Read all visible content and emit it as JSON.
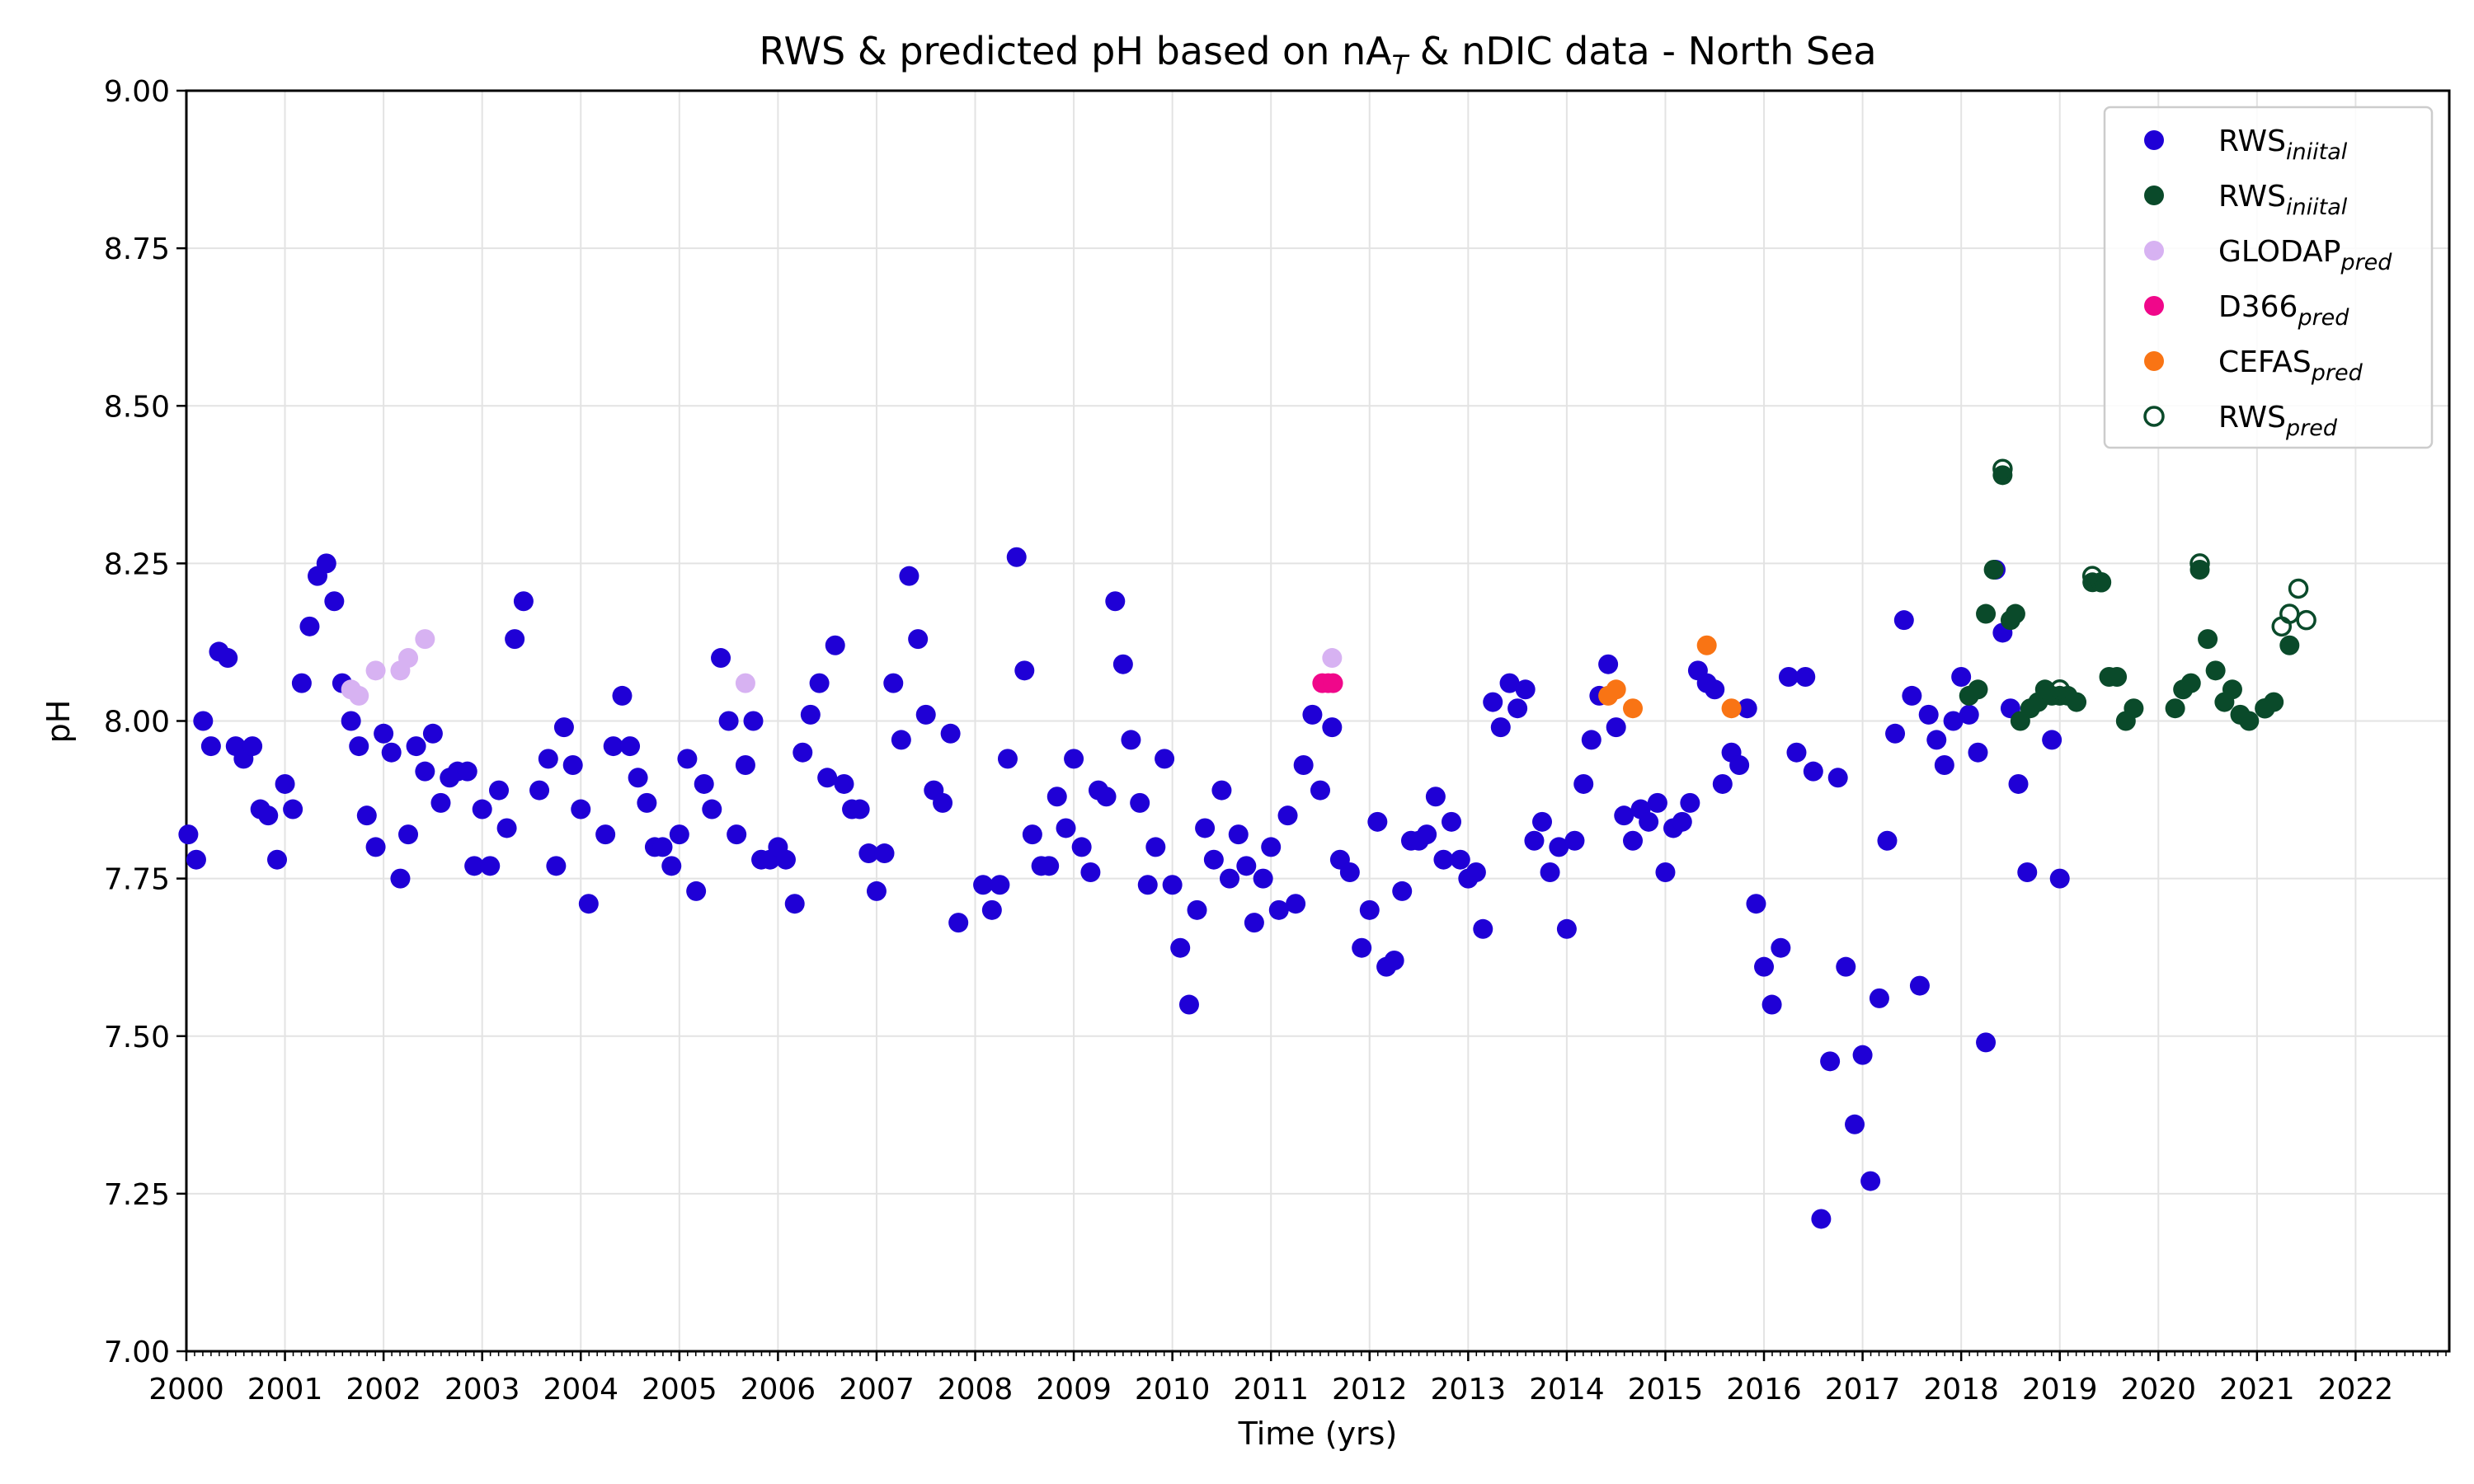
{
  "chart_data": {
    "type": "scatter",
    "title": "RWS & predicted pH based on nA",
    "title_sub": "T",
    "title_rest": " & nDIC data - North Sea",
    "xlabel": "Time (yrs)",
    "ylabel": "pH",
    "xlim": [
      2000.0,
      2022.95
    ],
    "ylim": [
      7.0,
      9.0
    ],
    "x_ticks": [
      "2000",
      "2001",
      "2002",
      "2003",
      "2004",
      "2005",
      "2006",
      "2007",
      "2008",
      "2009",
      "2010",
      "2011",
      "2012",
      "2013",
      "2014",
      "2015",
      "2016",
      "2017",
      "2018",
      "2019",
      "2020",
      "2021",
      "2022"
    ],
    "y_ticks": [
      "7.00",
      "7.25",
      "7.50",
      "7.75",
      "8.00",
      "8.25",
      "8.50",
      "8.75",
      "9.00"
    ],
    "grid": true,
    "legend_position": "top-right",
    "series": [
      {
        "name": "RWS",
        "name_sub": "iniital",
        "color": "#1f00d6",
        "marker": "filled",
        "points": [
          [
            2000.02,
            7.82
          ],
          [
            2000.1,
            7.78
          ],
          [
            2000.17,
            8.0
          ],
          [
            2000.25,
            7.96
          ],
          [
            2000.33,
            8.11
          ],
          [
            2000.42,
            8.1
          ],
          [
            2000.5,
            7.96
          ],
          [
            2000.58,
            7.94
          ],
          [
            2000.67,
            7.96
          ],
          [
            2000.75,
            7.86
          ],
          [
            2000.83,
            7.85
          ],
          [
            2000.92,
            7.78
          ],
          [
            2001.0,
            7.9
          ],
          [
            2001.08,
            7.86
          ],
          [
            2001.17,
            8.06
          ],
          [
            2001.25,
            8.15
          ],
          [
            2001.33,
            8.23
          ],
          [
            2001.42,
            8.25
          ],
          [
            2001.5,
            8.19
          ],
          [
            2001.58,
            8.06
          ],
          [
            2001.67,
            8.0
          ],
          [
            2001.75,
            7.96
          ],
          [
            2001.83,
            7.85
          ],
          [
            2001.92,
            7.8
          ],
          [
            2002.0,
            7.98
          ],
          [
            2002.08,
            7.95
          ],
          [
            2002.17,
            7.75
          ],
          [
            2002.25,
            7.82
          ],
          [
            2002.33,
            7.96
          ],
          [
            2002.42,
            7.92
          ],
          [
            2002.5,
            7.98
          ],
          [
            2002.58,
            7.87
          ],
          [
            2002.67,
            7.91
          ],
          [
            2002.75,
            7.92
          ],
          [
            2002.85,
            7.92
          ],
          [
            2002.92,
            7.77
          ],
          [
            2003.0,
            7.86
          ],
          [
            2003.08,
            7.77
          ],
          [
            2003.17,
            7.89
          ],
          [
            2003.25,
            7.83
          ],
          [
            2003.33,
            8.13
          ],
          [
            2003.42,
            8.19
          ],
          [
            2003.58,
            7.89
          ],
          [
            2003.67,
            7.94
          ],
          [
            2003.75,
            7.77
          ],
          [
            2003.83,
            7.99
          ],
          [
            2003.92,
            7.93
          ],
          [
            2004.0,
            7.86
          ],
          [
            2004.08,
            7.71
          ],
          [
            2004.25,
            7.82
          ],
          [
            2004.33,
            7.96
          ],
          [
            2004.42,
            8.04
          ],
          [
            2004.5,
            7.96
          ],
          [
            2004.58,
            7.91
          ],
          [
            2004.67,
            7.87
          ],
          [
            2004.75,
            7.8
          ],
          [
            2004.83,
            7.8
          ],
          [
            2004.92,
            7.77
          ],
          [
            2005.0,
            7.82
          ],
          [
            2005.08,
            7.94
          ],
          [
            2005.17,
            7.73
          ],
          [
            2005.25,
            7.9
          ],
          [
            2005.33,
            7.86
          ],
          [
            2005.42,
            8.1
          ],
          [
            2005.5,
            8.0
          ],
          [
            2005.58,
            7.82
          ],
          [
            2005.67,
            7.93
          ],
          [
            2005.75,
            8.0
          ],
          [
            2005.83,
            7.78
          ],
          [
            2005.92,
            7.78
          ],
          [
            2006.0,
            7.8
          ],
          [
            2006.08,
            7.78
          ],
          [
            2006.17,
            7.71
          ],
          [
            2006.25,
            7.95
          ],
          [
            2006.33,
            8.01
          ],
          [
            2006.42,
            8.06
          ],
          [
            2006.5,
            7.91
          ],
          [
            2006.58,
            8.12
          ],
          [
            2006.67,
            7.9
          ],
          [
            2006.75,
            7.86
          ],
          [
            2006.83,
            7.86
          ],
          [
            2006.92,
            7.79
          ],
          [
            2007.0,
            7.73
          ],
          [
            2007.08,
            7.79
          ],
          [
            2007.17,
            8.06
          ],
          [
            2007.25,
            7.97
          ],
          [
            2007.33,
            8.23
          ],
          [
            2007.42,
            8.13
          ],
          [
            2007.5,
            8.01
          ],
          [
            2007.58,
            7.89
          ],
          [
            2007.67,
            7.87
          ],
          [
            2007.75,
            7.98
          ],
          [
            2007.83,
            7.68
          ],
          [
            2008.08,
            7.74
          ],
          [
            2008.17,
            7.7
          ],
          [
            2008.25,
            7.74
          ],
          [
            2008.33,
            7.94
          ],
          [
            2008.42,
            8.26
          ],
          [
            2008.5,
            8.08
          ],
          [
            2008.58,
            7.82
          ],
          [
            2008.67,
            7.77
          ],
          [
            2008.75,
            7.77
          ],
          [
            2008.83,
            7.88
          ],
          [
            2008.92,
            7.83
          ],
          [
            2009.0,
            7.94
          ],
          [
            2009.08,
            7.8
          ],
          [
            2009.17,
            7.76
          ],
          [
            2009.25,
            7.89
          ],
          [
            2009.33,
            7.88
          ],
          [
            2009.42,
            8.19
          ],
          [
            2009.5,
            8.09
          ],
          [
            2009.58,
            7.97
          ],
          [
            2009.67,
            7.87
          ],
          [
            2009.75,
            7.74
          ],
          [
            2009.83,
            7.8
          ],
          [
            2009.92,
            7.94
          ],
          [
            2010.0,
            7.74
          ],
          [
            2010.08,
            7.64
          ],
          [
            2010.17,
            7.55
          ],
          [
            2010.25,
            7.7
          ],
          [
            2010.33,
            7.83
          ],
          [
            2010.42,
            7.78
          ],
          [
            2010.5,
            7.89
          ],
          [
            2010.58,
            7.75
          ],
          [
            2010.67,
            7.82
          ],
          [
            2010.75,
            7.77
          ],
          [
            2010.83,
            7.68
          ],
          [
            2010.92,
            7.75
          ],
          [
            2011.0,
            7.8
          ],
          [
            2011.08,
            7.7
          ],
          [
            2011.17,
            7.85
          ],
          [
            2011.25,
            7.71
          ],
          [
            2011.33,
            7.93
          ],
          [
            2011.42,
            8.01
          ],
          [
            2011.5,
            7.89
          ],
          [
            2011.62,
            7.99
          ],
          [
            2011.7,
            7.78
          ],
          [
            2011.8,
            7.76
          ],
          [
            2011.92,
            7.64
          ],
          [
            2012.0,
            7.7
          ],
          [
            2012.08,
            7.84
          ],
          [
            2012.17,
            7.61
          ],
          [
            2012.25,
            7.62
          ],
          [
            2012.33,
            7.73
          ],
          [
            2012.42,
            7.81
          ],
          [
            2012.5,
            7.81
          ],
          [
            2012.58,
            7.82
          ],
          [
            2012.67,
            7.88
          ],
          [
            2012.75,
            7.78
          ],
          [
            2012.83,
            7.84
          ],
          [
            2012.92,
            7.78
          ],
          [
            2013.0,
            7.75
          ],
          [
            2013.08,
            7.76
          ],
          [
            2013.15,
            7.67
          ],
          [
            2013.25,
            8.03
          ],
          [
            2013.33,
            7.99
          ],
          [
            2013.42,
            8.06
          ],
          [
            2013.5,
            8.02
          ],
          [
            2013.58,
            8.05
          ],
          [
            2013.67,
            7.81
          ],
          [
            2013.75,
            7.84
          ],
          [
            2013.83,
            7.76
          ],
          [
            2013.92,
            7.8
          ],
          [
            2014.0,
            7.67
          ],
          [
            2014.08,
            7.81
          ],
          [
            2014.17,
            7.9
          ],
          [
            2014.25,
            7.97
          ],
          [
            2014.33,
            8.04
          ],
          [
            2014.42,
            8.09
          ],
          [
            2014.5,
            7.99
          ],
          [
            2014.58,
            7.85
          ],
          [
            2014.67,
            7.81
          ],
          [
            2014.75,
            7.86
          ],
          [
            2014.83,
            7.84
          ],
          [
            2014.92,
            7.87
          ],
          [
            2015.0,
            7.76
          ],
          [
            2015.08,
            7.83
          ],
          [
            2015.17,
            7.84
          ],
          [
            2015.25,
            7.87
          ],
          [
            2015.33,
            8.08
          ],
          [
            2015.42,
            8.06
          ],
          [
            2015.5,
            8.05
          ],
          [
            2015.58,
            7.9
          ],
          [
            2015.67,
            7.95
          ],
          [
            2015.75,
            7.93
          ],
          [
            2015.83,
            8.02
          ],
          [
            2015.92,
            7.71
          ],
          [
            2016.0,
            7.61
          ],
          [
            2016.08,
            7.55
          ],
          [
            2016.17,
            7.64
          ],
          [
            2016.25,
            8.07
          ],
          [
            2016.33,
            7.95
          ],
          [
            2016.42,
            8.07
          ],
          [
            2016.5,
            7.92
          ],
          [
            2016.58,
            7.21
          ],
          [
            2016.67,
            7.46
          ],
          [
            2016.75,
            7.91
          ],
          [
            2016.83,
            7.61
          ],
          [
            2016.92,
            7.36
          ],
          [
            2017.0,
            7.47
          ],
          [
            2017.08,
            7.27
          ],
          [
            2017.17,
            7.56
          ],
          [
            2017.25,
            7.81
          ],
          [
            2017.33,
            7.98
          ],
          [
            2017.42,
            8.16
          ],
          [
            2017.5,
            8.04
          ],
          [
            2017.58,
            7.58
          ],
          [
            2017.67,
            8.01
          ],
          [
            2017.75,
            7.97
          ],
          [
            2017.83,
            7.93
          ],
          [
            2017.92,
            8.0
          ],
          [
            2018.0,
            8.07
          ],
          [
            2018.08,
            8.01
          ],
          [
            2018.17,
            7.95
          ],
          [
            2018.25,
            7.49
          ],
          [
            2018.35,
            8.24
          ],
          [
            2018.42,
            8.14
          ],
          [
            2018.5,
            8.02
          ],
          [
            2018.58,
            7.9
          ],
          [
            2018.67,
            7.76
          ],
          [
            2018.92,
            7.97
          ],
          [
            2019.0,
            7.75
          ]
        ]
      },
      {
        "name": "RWS",
        "name_sub": "iniital",
        "color": "#0a4a2a",
        "marker": "filled",
        "points": [
          [
            2018.08,
            8.04
          ],
          [
            2018.17,
            8.05
          ],
          [
            2018.25,
            8.17
          ],
          [
            2018.33,
            8.24
          ],
          [
            2018.42,
            8.39
          ],
          [
            2018.5,
            8.16
          ],
          [
            2018.55,
            8.17
          ],
          [
            2018.6,
            8.0
          ],
          [
            2018.7,
            8.02
          ],
          [
            2018.78,
            8.03
          ],
          [
            2018.85,
            8.05
          ],
          [
            2018.92,
            8.04
          ],
          [
            2019.0,
            8.04
          ],
          [
            2019.08,
            8.04
          ],
          [
            2019.17,
            8.03
          ],
          [
            2019.33,
            8.22
          ],
          [
            2019.42,
            8.22
          ],
          [
            2019.5,
            8.07
          ],
          [
            2019.58,
            8.07
          ],
          [
            2019.67,
            8.0
          ],
          [
            2019.75,
            8.02
          ],
          [
            2020.17,
            8.02
          ],
          [
            2020.25,
            8.05
          ],
          [
            2020.33,
            8.06
          ],
          [
            2020.42,
            8.24
          ],
          [
            2020.5,
            8.13
          ],
          [
            2020.58,
            8.08
          ],
          [
            2020.67,
            8.03
          ],
          [
            2020.75,
            8.05
          ],
          [
            2020.83,
            8.01
          ],
          [
            2020.92,
            8.0
          ],
          [
            2021.08,
            8.02
          ],
          [
            2021.17,
            8.03
          ],
          [
            2021.33,
            8.12
          ]
        ]
      },
      {
        "name": "GLODAP",
        "name_sub": "pred",
        "color": "#d7b2f2",
        "marker": "filled",
        "points": [
          [
            2001.67,
            8.05
          ],
          [
            2001.75,
            8.04
          ],
          [
            2001.92,
            8.08
          ],
          [
            2002.17,
            8.08
          ],
          [
            2002.25,
            8.1
          ],
          [
            2002.42,
            8.13
          ],
          [
            2005.67,
            8.06
          ],
          [
            2011.62,
            8.1
          ]
        ]
      },
      {
        "name": "D366",
        "name_sub": "pred",
        "color": "#f0078a",
        "marker": "filled",
        "points": [
          [
            2011.52,
            8.06
          ],
          [
            2011.58,
            8.06
          ],
          [
            2011.63,
            8.06
          ]
        ]
      },
      {
        "name": "CEFAS",
        "name_sub": "pred",
        "color": "#f97414",
        "marker": "filled",
        "points": [
          [
            2014.42,
            8.04
          ],
          [
            2014.5,
            8.05
          ],
          [
            2014.67,
            8.02
          ],
          [
            2015.42,
            8.12
          ],
          [
            2015.67,
            8.02
          ]
        ]
      },
      {
        "name": "RWS",
        "name_sub": "pred",
        "color": "#0a4a2a",
        "marker": "open",
        "points": [
          [
            2018.42,
            8.4
          ],
          [
            2019.0,
            8.05
          ],
          [
            2019.33,
            8.23
          ],
          [
            2019.42,
            8.22
          ],
          [
            2020.42,
            8.25
          ],
          [
            2021.08,
            8.02
          ],
          [
            2021.25,
            8.15
          ],
          [
            2021.33,
            8.17
          ],
          [
            2021.42,
            8.21
          ],
          [
            2021.5,
            8.16
          ]
        ]
      }
    ]
  }
}
